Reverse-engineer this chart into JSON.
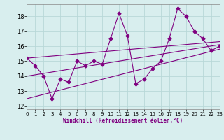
{
  "x": [
    0,
    1,
    2,
    3,
    4,
    5,
    6,
    7,
    8,
    9,
    10,
    11,
    12,
    13,
    14,
    15,
    16,
    17,
    18,
    19,
    20,
    21,
    22,
    23
  ],
  "y_data": [
    15.2,
    14.7,
    14.0,
    12.5,
    13.8,
    13.6,
    15.0,
    14.7,
    15.0,
    14.8,
    16.5,
    18.2,
    16.7,
    13.5,
    13.8,
    14.5,
    15.0,
    16.5,
    18.5,
    18.0,
    17.0,
    16.5,
    15.7,
    16.0
  ],
  "trend1_x": [
    0,
    23
  ],
  "trend1_y": [
    15.2,
    16.3
  ],
  "trend2_x": [
    0,
    23
  ],
  "trend2_y": [
    14.0,
    16.1
  ],
  "trend3_x": [
    0,
    23
  ],
  "trend3_y": [
    12.5,
    15.8
  ],
  "line_color": "#800080",
  "bg_color": "#d8eeee",
  "grid_color": "#b8d8d8",
  "xlabel": "Windchill (Refroidissement éolien,°C)",
  "ylabel_ticks": [
    12,
    13,
    14,
    15,
    16,
    17,
    18
  ],
  "xlim": [
    0,
    23
  ],
  "ylim": [
    11.8,
    18.8
  ],
  "marker": "D",
  "markersize": 2.5
}
